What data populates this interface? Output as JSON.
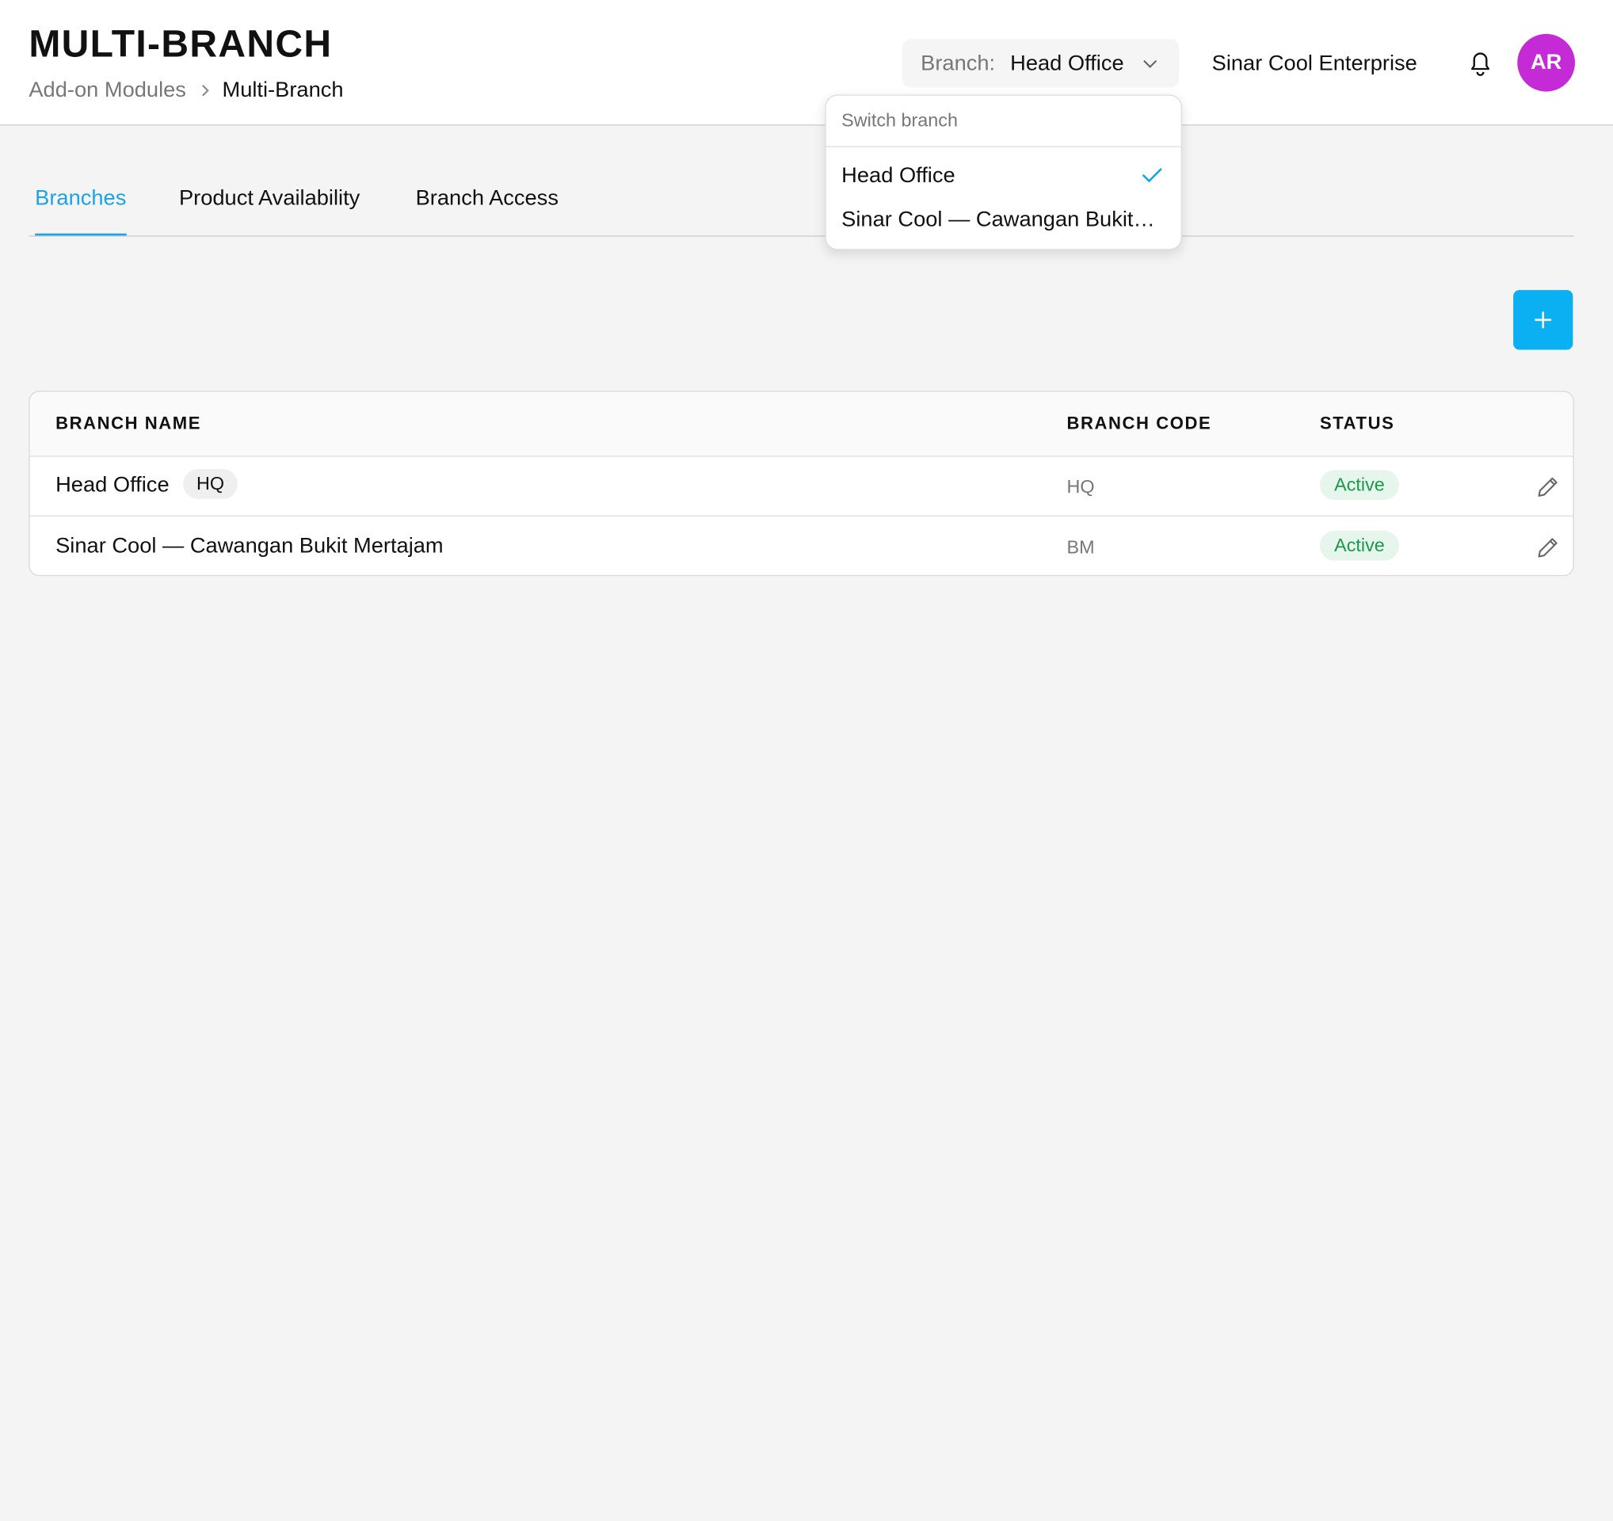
{
  "header": {
    "title": "MULTI-BRANCH",
    "breadcrumb": [
      "Add-on Modules",
      "Multi-Branch"
    ],
    "branch_selector": {
      "label": "Branch:",
      "value": "Head Office"
    },
    "company": "Sinar Cool Enterprise",
    "avatar": "AR"
  },
  "dropdown": {
    "heading": "Switch branch",
    "options": [
      "Head Office",
      "Sinar Cool — Cawangan Bukit…"
    ]
  },
  "tabs": [
    "Branches",
    "Product Availability",
    "Branch Access"
  ],
  "table": {
    "columns": [
      "BRANCH NAME",
      "BRANCH CODE",
      "STATUS"
    ],
    "rows": [
      {
        "name": "Head Office",
        "badge": "HQ",
        "code": "HQ",
        "status": "Active"
      },
      {
        "name": "Sinar Cool — Cawangan Bukit Mertajam",
        "code": "BM",
        "status": "Active"
      }
    ]
  }
}
